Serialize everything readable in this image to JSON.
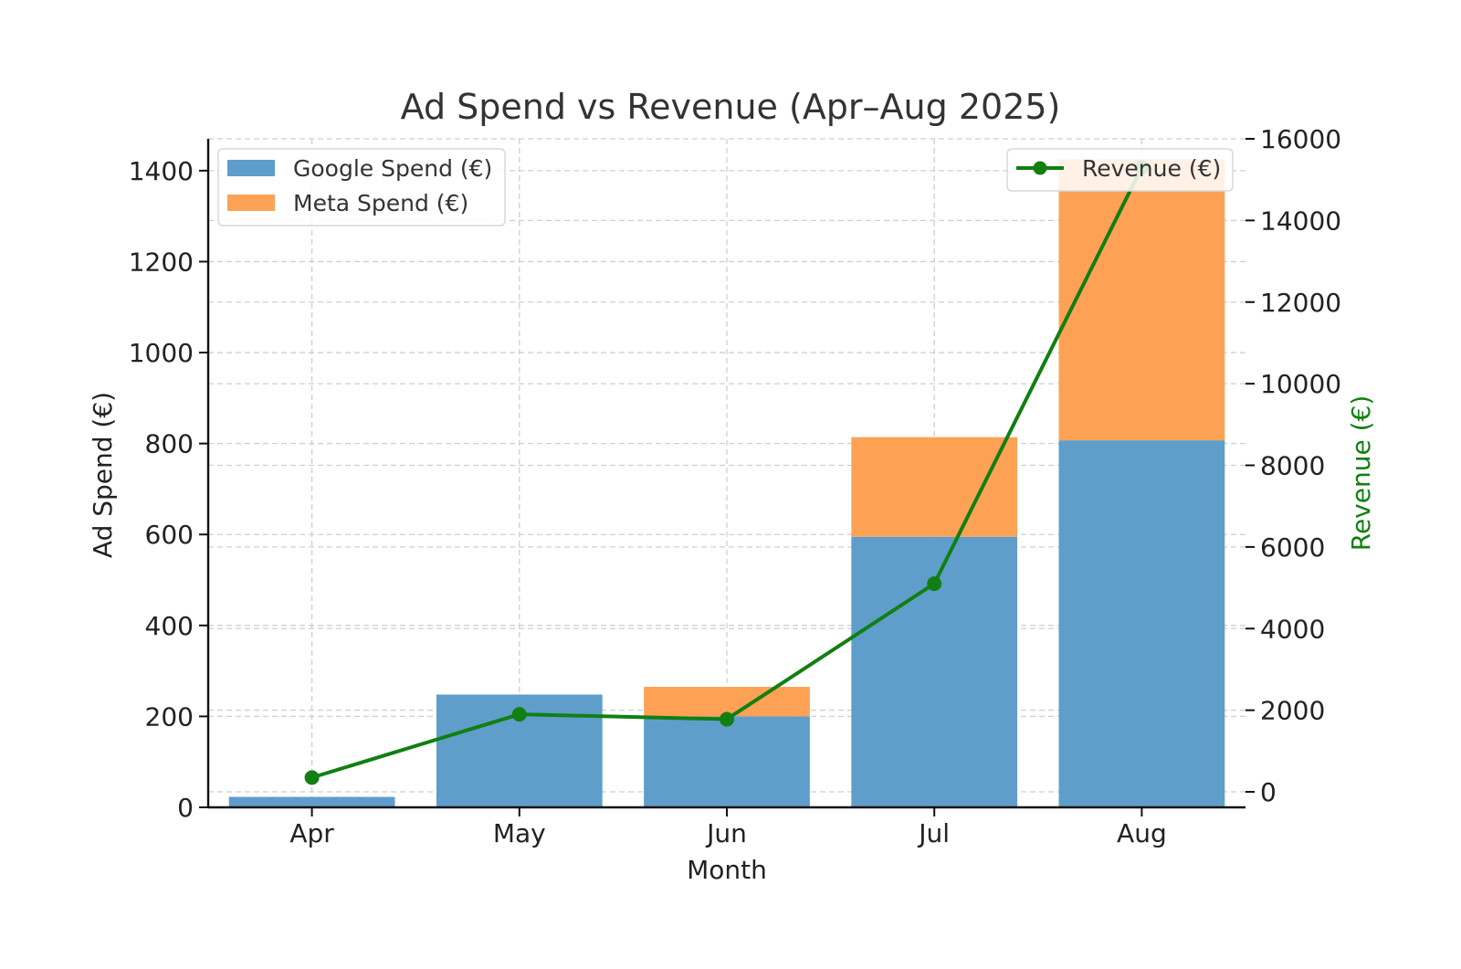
{
  "chart_data": {
    "type": "bar",
    "title": "Ad Spend vs Revenue (Apr–Aug 2025)",
    "xlabel": "Month",
    "ylabel": "Ad Spend (€)",
    "y2label": "Revenue (€)",
    "categories": [
      "Apr",
      "May",
      "Jun",
      "Jul",
      "Aug"
    ],
    "ylim": [
      0,
      1470
    ],
    "y2lim": [
      -380,
      16000
    ],
    "yticks": [
      0,
      200,
      400,
      600,
      800,
      1000,
      1200,
      1400
    ],
    "y2ticks": [
      0,
      2000,
      4000,
      6000,
      8000,
      10000,
      12000,
      14000,
      16000
    ],
    "grid": true,
    "stacked": true,
    "series": [
      {
        "name": "Google Spend (€)",
        "kind": "bar",
        "axis": "left",
        "color": "#5f9ecb",
        "values": [
          23,
          248,
          200,
          595,
          807
        ]
      },
      {
        "name": "Meta Spend (€)",
        "kind": "bar",
        "axis": "left",
        "color": "#fda254",
        "values": [
          0,
          0,
          65,
          219,
          618
        ]
      },
      {
        "name": "Revenue (€)",
        "kind": "line",
        "axis": "right",
        "color": "#117f11",
        "values": [
          350,
          1900,
          1780,
          5100,
          15300
        ]
      }
    ],
    "legends": {
      "left": {
        "placement": "top-left",
        "entries": [
          "Google Spend (€)",
          "Meta Spend (€)"
        ]
      },
      "right": {
        "placement": "top-right",
        "entries": [
          "Revenue (€)"
        ]
      }
    }
  }
}
